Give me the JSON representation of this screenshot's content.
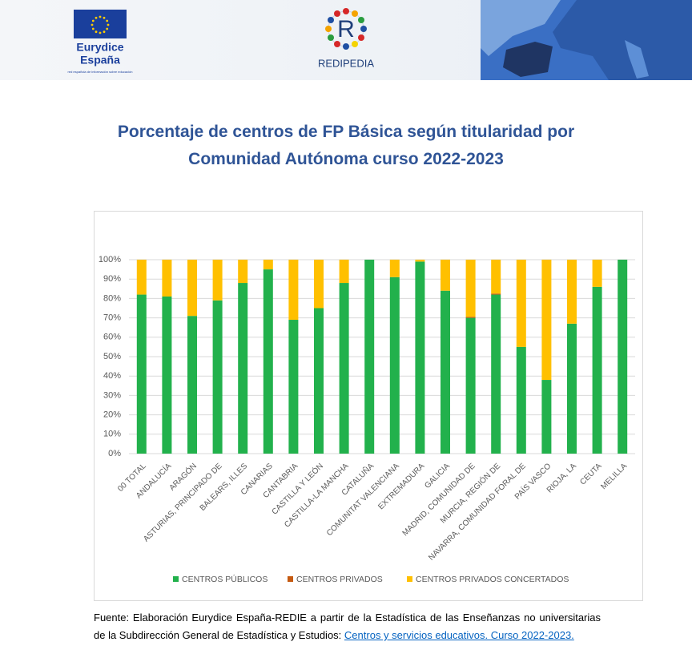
{
  "header": {
    "logo_left": {
      "name": "Eurydice",
      "country": "España",
      "tagline": "red española de información sobre educación"
    },
    "logo_center": {
      "letter": "R",
      "name": "REDIPEDIA"
    }
  },
  "chart_data": {
    "type": "stacked_bar",
    "title": "Porcentaje de centros de FP Básica según titularidad por Comunidad Autónoma curso 2022-2023",
    "categories": [
      "00 TOTAL",
      "ANDALUCÍA",
      "ARAGÓN",
      "ASTURIAS, PRINCIPADO DE",
      "BALEARS, ILLES",
      "CANARIAS",
      "CANTABRIA",
      "CASTILLA Y LEÓN",
      "CASTILLA-LA MANCHA",
      "CATALUÑA",
      "COMUNITAT VALENCIANA",
      "EXTREMADURA",
      "GALICIA",
      "MADRID, COMUNIDAD DE",
      "MURCIA, REGIÓN DE",
      "NAVARRA, COMUNIDAD FORAL DE",
      "PAÍS VASCO",
      "RIOJA, LA",
      "CEUTA",
      "MELILLA"
    ],
    "series": [
      {
        "name": "CENTROS PÚBLICOS",
        "color": "#22b14c",
        "values": [
          82,
          81,
          71,
          79,
          88,
          95,
          69,
          75,
          88,
          100,
          91,
          99,
          84,
          70,
          82,
          55,
          38,
          67,
          86,
          100
        ]
      },
      {
        "name": "CENTROS PRIVADOS",
        "color": "#c55a11",
        "values": [
          0,
          0,
          0,
          0,
          0,
          0,
          0,
          0,
          0,
          0,
          0,
          0,
          0,
          0.5,
          0.5,
          0,
          0,
          0,
          0,
          0
        ]
      },
      {
        "name": "CENTROS PRIVADOS CONCERTADOS",
        "color": "#ffc000",
        "values": [
          18,
          19,
          29,
          21,
          12,
          5,
          31,
          25,
          12,
          0,
          9,
          1,
          16,
          29.5,
          17.5,
          45,
          62,
          33,
          14,
          0
        ]
      }
    ],
    "ylim": [
      0,
      100
    ],
    "yticks": [
      {
        "value": 0,
        "label": "0%"
      },
      {
        "value": 10,
        "label": "10%"
      },
      {
        "value": 20,
        "label": "20%"
      },
      {
        "value": 30,
        "label": "30%"
      },
      {
        "value": 40,
        "label": "40%"
      },
      {
        "value": 50,
        "label": "50%"
      },
      {
        "value": 60,
        "label": "60%"
      },
      {
        "value": 70,
        "label": "70%"
      },
      {
        "value": 80,
        "label": "80%"
      },
      {
        "value": 90,
        "label": "90%"
      },
      {
        "value": 100,
        "label": "100%"
      }
    ],
    "grid": true,
    "legend": "bottom"
  },
  "source": {
    "text": "Fuente: Elaboración Eurydice España-REDIE a partir de la Estadística de las Enseñanzas no universitarias de la Subdirección General de Estadística y Estudios:",
    "link": "Centros y servicios educativos. Curso 2022-2023."
  }
}
